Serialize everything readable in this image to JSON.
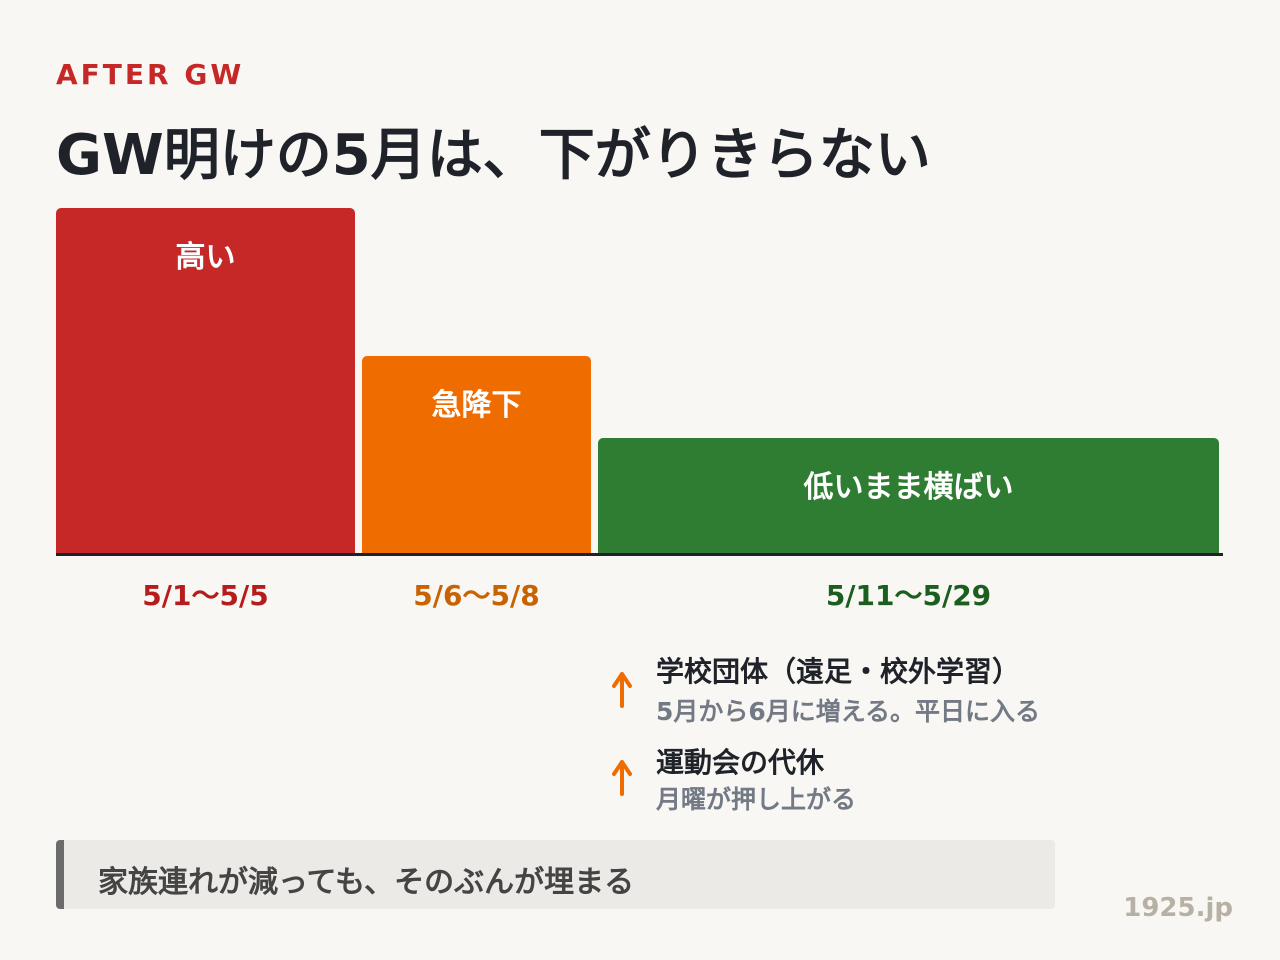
{
  "eyebrow": "AFTER GW",
  "title": "GW明けの5月は、下がりきらない",
  "periods": [
    {
      "label": "高い",
      "dates": "5/1〜5/5"
    },
    {
      "label": "急降下",
      "dates": "5/6〜5/8"
    },
    {
      "label": "低いまま横ばい",
      "dates": "5/11〜5/29"
    }
  ],
  "factors": [
    {
      "title": "学校団体（遠足・校外学習）",
      "note": "5月から6月に増える。平日に入る"
    },
    {
      "title": "運動会の代休",
      "note": "月曜が押し上がる"
    }
  ],
  "callout": "家族連れが減っても、そのぶんが埋まる",
  "source": "1925.jp"
}
